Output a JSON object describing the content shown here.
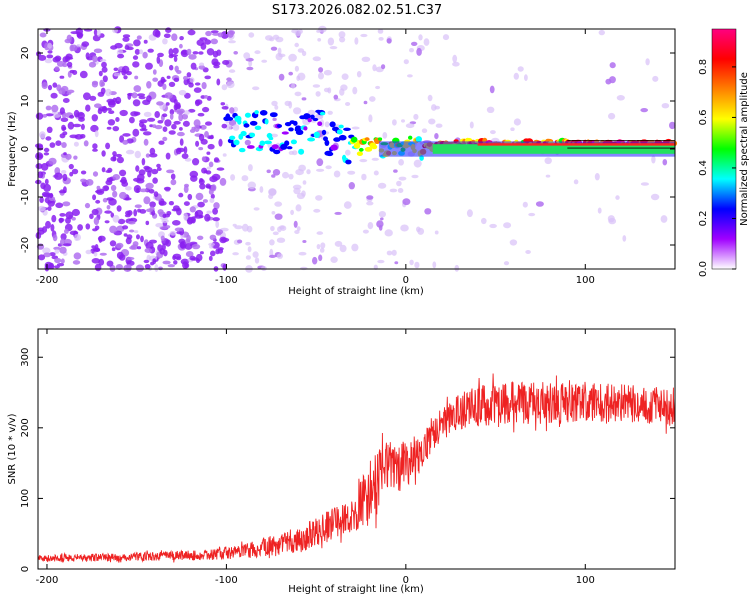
{
  "title": "S173.2026.082.02.51.C37",
  "chart_data": [
    {
      "type": "heatmap",
      "xlabel": "Height of straight line (km)",
      "ylabel": "Frequency (Hz)",
      "xlim": [
        -205,
        150
      ],
      "ylim": [
        -25,
        25
      ],
      "xticks": [
        -200,
        -100,
        0,
        100
      ],
      "yticks": [
        -20,
        -10,
        0,
        10,
        20
      ],
      "xtick_labels": [
        "-200",
        "-100",
        "0",
        "100"
      ],
      "ytick_labels": [
        "-20",
        "-10",
        "0",
        "10",
        "20"
      ],
      "grid": false,
      "description_of_signal": "noisy scattered energy below -100 km; concentrated near 0 Hz above ~-20 km with normalized amplitude rising to ~0.9",
      "signal_band_hz": [
        -1,
        1
      ],
      "signal_trace": [
        {
          "x": -100,
          "y": 4
        },
        {
          "x": -90,
          "y": 3
        },
        {
          "x": -80,
          "y": 4
        },
        {
          "x": -70,
          "y": 3
        },
        {
          "x": -60,
          "y": 3
        },
        {
          "x": -50,
          "y": 5
        },
        {
          "x": -40,
          "y": 2
        },
        {
          "x": -30,
          "y": 0
        },
        {
          "x": -20,
          "y": 1
        },
        {
          "x": -10,
          "y": 0
        },
        {
          "x": 0,
          "y": 1
        },
        {
          "x": 10,
          "y": 0
        },
        {
          "x": 20,
          "y": 1
        },
        {
          "x": 50,
          "y": 1
        },
        {
          "x": 90,
          "y": 1
        },
        {
          "x": 150,
          "y": 1
        }
      ],
      "colorbar": {
        "label": "Normalized spectral amplitude",
        "range": [
          0,
          0.95
        ],
        "ticks": [
          0.0,
          0.2,
          0.4,
          0.6,
          0.8
        ],
        "tick_labels": [
          "0.0",
          "0.2",
          "0.4",
          "0.6",
          "0.8"
        ],
        "colors": [
          "#ffffff",
          "#a000ff",
          "#0000ff",
          "#00ffff",
          "#00ff00",
          "#ffff00",
          "#ff8000",
          "#ff0000",
          "#ff0080"
        ]
      }
    },
    {
      "type": "line",
      "xlabel": "Height of straight line (km)",
      "ylabel": "SNR (10 * v/v)",
      "xlim": [
        -205,
        150
      ],
      "ylim": [
        0,
        340
      ],
      "xticks": [
        -200,
        -100,
        0,
        100
      ],
      "yticks": [
        0,
        100,
        200,
        300
      ],
      "xtick_labels": [
        "-200",
        "-100",
        "0",
        "100"
      ],
      "ytick_labels": [
        "0",
        "100",
        "200",
        "300"
      ],
      "grid": false,
      "color": "#ee2222",
      "envelope": {
        "x": [
          -205,
          -150,
          -110,
          -90,
          -70,
          -50,
          -40,
          -30,
          -20,
          -15,
          -10,
          -5,
          0,
          10,
          20,
          30,
          40,
          60,
          80,
          100,
          120,
          150
        ],
        "mean": [
          15,
          17,
          20,
          25,
          35,
          50,
          65,
          75,
          110,
          130,
          150,
          145,
          150,
          175,
          205,
          225,
          230,
          235,
          235,
          235,
          235,
          230
        ],
        "amp": [
          10,
          12,
          15,
          20,
          30,
          45,
          45,
          50,
          90,
          80,
          70,
          70,
          70,
          55,
          50,
          55,
          60,
          60,
          60,
          60,
          55,
          55
        ]
      }
    }
  ]
}
